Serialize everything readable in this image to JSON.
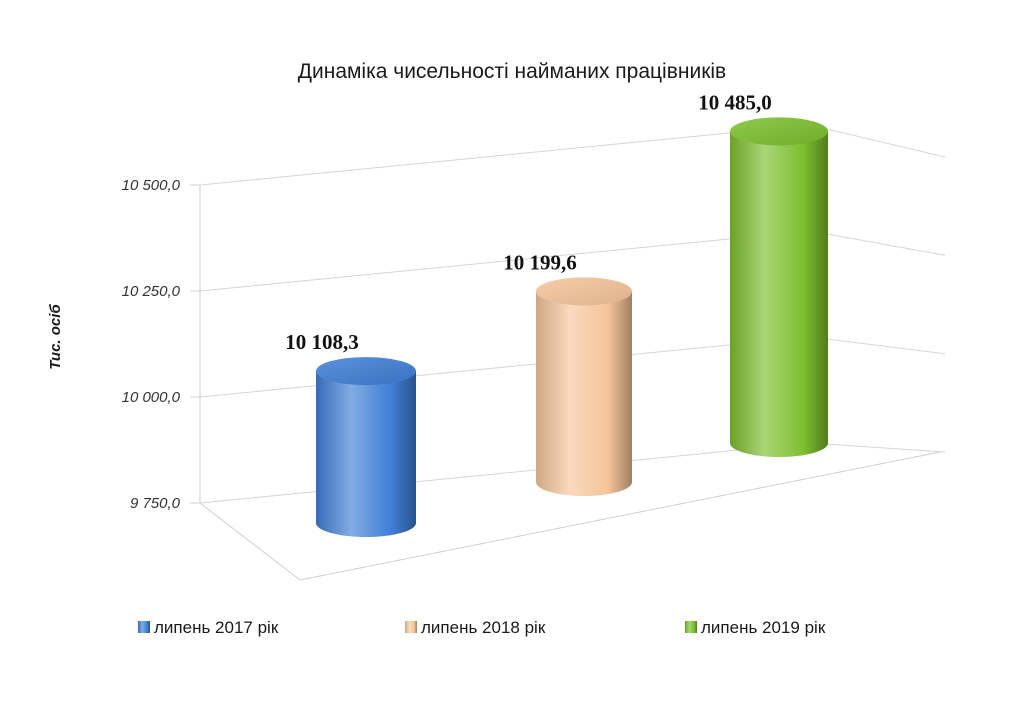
{
  "chart_data": {
    "type": "bar",
    "title": "Динаміка чисельності найманих працівників",
    "ylabel": "Тис. осіб",
    "xlabel": "",
    "ylim": [
      9750,
      10500
    ],
    "yticks": [
      9750,
      10000,
      10250,
      10500
    ],
    "ytick_labels": [
      "9 750,0",
      "10 000,0",
      "10 250,0",
      "10 500,0"
    ],
    "categories": [
      "липень 2017 рік",
      "липень 2018 рік",
      "липень 2019 рік"
    ],
    "values": [
      10108.3,
      10199.6,
      10485.0
    ],
    "data_labels": [
      "10 108,3",
      "10 199,6",
      "10 485,0"
    ],
    "colors": [
      "#3f7fd6",
      "#f5c59a",
      "#7cbf2e"
    ],
    "style": "3d-cylinder",
    "grid": true,
    "legend_position": "bottom"
  }
}
